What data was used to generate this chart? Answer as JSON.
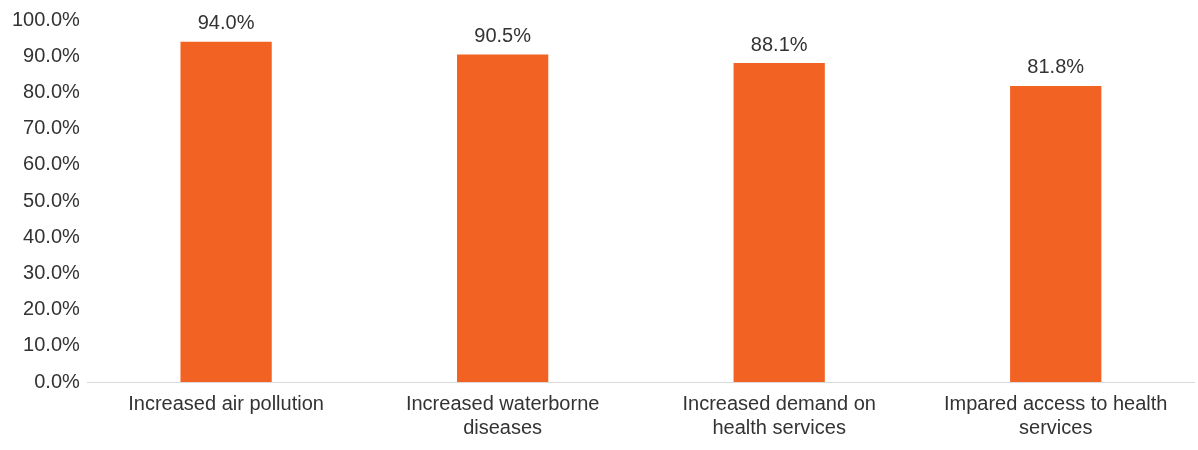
{
  "chart_data": {
    "type": "bar",
    "categories": [
      "Increased air pollution",
      "Increased waterborne diseases",
      "Increased demand on health services",
      "Impared access to health services"
    ],
    "values": [
      94.0,
      90.5,
      88.1,
      81.8
    ],
    "color": "#f26222",
    "value_labels": [
      "94.0%",
      "90.5%",
      "88.1%",
      "81.8%"
    ],
    "ylim": [
      0,
      100
    ],
    "yticks": [
      {
        "value": 0,
        "label": "0.0%"
      },
      {
        "value": 10,
        "label": "10.0%"
      },
      {
        "value": 20,
        "label": "20.0%"
      },
      {
        "value": 30,
        "label": "30.0%"
      },
      {
        "value": 40,
        "label": "40.0%"
      },
      {
        "value": 50,
        "label": "50.0%"
      },
      {
        "value": 60,
        "label": "60.0%"
      },
      {
        "value": 70,
        "label": "70.0%"
      },
      {
        "value": 80,
        "label": "80.0%"
      },
      {
        "value": 90,
        "label": "90.0%"
      },
      {
        "value": 100,
        "label": "100.0%"
      }
    ],
    "grid": false,
    "legend": false
  }
}
